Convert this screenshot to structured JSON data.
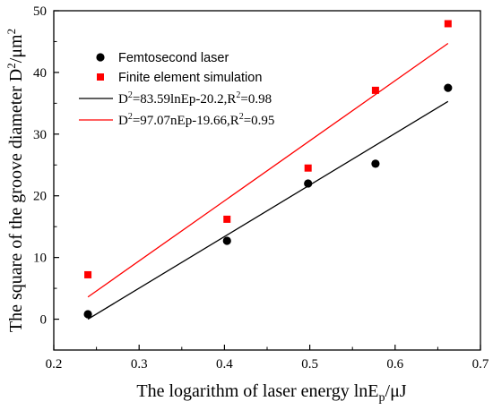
{
  "chart_data": {
    "type": "scatter",
    "xlabel_text": "The logarithm of laser energy lnE",
    "xlabel_sub": "p",
    "xlabel_tail": "/μJ",
    "ylabel_text": "The square of the groove diameter D",
    "ylabel_sup": "2",
    "ylabel_tail": "/μm",
    "ylabel_sup2": "2",
    "xlim": [
      0.2,
      0.7
    ],
    "ylim": [
      -5,
      50
    ],
    "x_ticks": [
      0.2,
      0.3,
      0.4,
      0.5,
      0.6,
      0.7
    ],
    "x_tick_labels": [
      "0.2",
      "0.3",
      "0.4",
      "0.5",
      "0.6",
      "0.7"
    ],
    "y_ticks": [
      0,
      10,
      20,
      30,
      40,
      50
    ],
    "y_tick_labels": [
      "0",
      "10",
      "20",
      "30",
      "40",
      "50"
    ],
    "legend_position": "top-left",
    "series": [
      {
        "name": "Femtosecond laser",
        "marker": "circle",
        "color": "#000000",
        "x": [
          0.24,
          0.403,
          0.498,
          0.577,
          0.662
        ],
        "y": [
          0.8,
          12.7,
          22.0,
          25.2,
          37.5
        ]
      },
      {
        "name": "Finite element simulation",
        "marker": "square",
        "color": "#ff0000",
        "x": [
          0.24,
          0.403,
          0.498,
          0.577,
          0.662
        ],
        "y": [
          7.2,
          16.2,
          24.5,
          37.1,
          47.9
        ]
      }
    ],
    "fits": [
      {
        "label_pre": "D",
        "label_sup": "2",
        "label_mid": "=83.59lnEp-20.2,R",
        "label_sup2": "2",
        "label_post": "=0.98",
        "color": "#000000",
        "x": [
          0.24,
          0.662
        ],
        "y": [
          0.0,
          35.3
        ]
      },
      {
        "label_pre": "D",
        "label_sup": "2",
        "label_mid": "=97.07nEp-19.66,R",
        "label_sup2": "2",
        "label_post": "=0.95",
        "color": "#ff0000",
        "x": [
          0.24,
          0.662
        ],
        "y": [
          3.6,
          44.7
        ]
      }
    ]
  }
}
